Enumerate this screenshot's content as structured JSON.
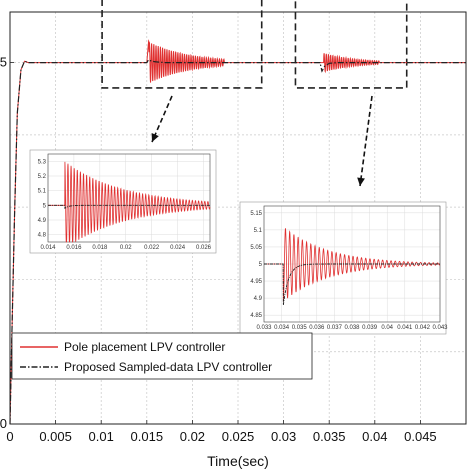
{
  "chart_data": {
    "type": "line",
    "xlabel": "Time(sec)",
    "ylabel": "",
    "xlim": [
      0,
      0.05
    ],
    "ylim": [
      0,
      5.7
    ],
    "x_ticks": [
      "0",
      "0.005",
      "0.01",
      "0.015",
      "0.02",
      "0.025",
      "0.03",
      "0.035",
      "0.04",
      "0.045"
    ],
    "y_ticks": [
      "0",
      "5"
    ],
    "grid": true,
    "legend": "lower-left",
    "series": [
      {
        "name": "Pole placement LPV controller",
        "color": "#e03030",
        "style": "solid",
        "steady_value": 5,
        "x": [
          0,
          0.0002,
          0.0005,
          0.0008,
          0.0012,
          0.0016,
          0.002,
          0.003,
          0.015,
          0.0152,
          0.0155,
          0.016,
          0.017,
          0.018,
          0.02,
          0.022,
          0.025,
          0.034,
          0.0342,
          0.0345,
          0.035,
          0.036,
          0.038,
          0.04,
          0.045,
          0.05
        ],
        "y": [
          0,
          1.2,
          2.9,
          4.3,
          4.9,
          5.02,
          5.0,
          5.0,
          5.0,
          5.3,
          5.22,
          5.15,
          5.08,
          5.05,
          5.03,
          5.01,
          5.0,
          5.0,
          5.14,
          5.1,
          5.08,
          5.05,
          5.02,
          5.0,
          5.0,
          5.0
        ]
      },
      {
        "name": "Proposed Sampled-data LPV controller",
        "color": "#222222",
        "style": "dashdot",
        "x": [
          0,
          0.0002,
          0.0005,
          0.0008,
          0.0012,
          0.0016,
          0.002,
          0.003,
          0.015,
          0.0152,
          0.0155,
          0.016,
          0.017,
          0.02,
          0.034,
          0.0342,
          0.0345,
          0.035,
          0.036,
          0.04,
          0.045,
          0.05
        ],
        "y": [
          0,
          1.2,
          2.9,
          4.3,
          4.9,
          5.02,
          5.0,
          5.0,
          5.0,
          5.04,
          5.02,
          5.01,
          5.0,
          5.0,
          5.0,
          4.88,
          4.95,
          4.99,
          5.0,
          5.0,
          5.0,
          5.0
        ]
      }
    ],
    "oscillation_windows": [
      {
        "t0": 0.01505,
        "t1": 0.0235,
        "amp": 0.3,
        "decay": 0.0045,
        "period": 0.00024
      },
      {
        "t0": 0.0342,
        "t1": 0.0405,
        "amp": 0.14,
        "decay": 0.0035,
        "period": 0.00024
      }
    ],
    "zoom_boxes": [
      {
        "x": [
          0.0101,
          0.0276
        ],
        "y": [
          4.65,
          5.95
        ]
      },
      {
        "x": [
          0.0313,
          0.0435
        ],
        "y": [
          4.65,
          5.95
        ]
      }
    ],
    "insets": [
      {
        "name": "zoom-1",
        "xlim": [
          0.014,
          0.0265
        ],
        "ylim": [
          4.75,
          5.35
        ],
        "x_ticks": [
          "0.014",
          "0.016",
          "0.018",
          "0.02",
          "0.022",
          "0.024",
          "0.026"
        ],
        "y_ticks": [
          "4.8",
          "4.9",
          "5",
          "5.1",
          "5.2",
          "5.3"
        ],
        "event_t": 0.0153,
        "amp": 0.3,
        "decay": 0.0045,
        "period": 0.00024,
        "black_dip": -0.02,
        "black_decay": 0.0003
      },
      {
        "name": "zoom-2",
        "xlim": [
          0.033,
          0.043
        ],
        "ylim": [
          4.83,
          5.17
        ],
        "x_ticks": [
          "0.033",
          "0.034",
          "0.035",
          "0.036",
          "0.037",
          "0.038",
          "0.039",
          "0.04",
          "0.041",
          "0.042",
          "0.043"
        ],
        "y_ticks": [
          "4.85",
          "4.9",
          "4.95",
          "5",
          "5.05",
          "5.1",
          "5.15"
        ],
        "event_t": 0.0341,
        "amp": 0.11,
        "decay": 0.0025,
        "period": 0.00024,
        "black_dip": -0.12,
        "black_decay": 0.0003
      }
    ]
  }
}
